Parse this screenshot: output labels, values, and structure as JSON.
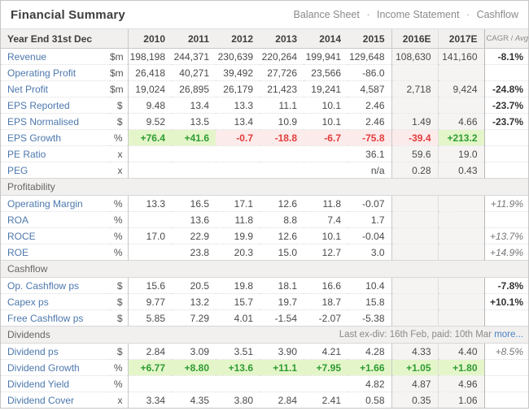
{
  "colors": {
    "link_blue": "#4d78ad",
    "more_link_blue": "#4c82c3",
    "positive_text": "#2e9b33",
    "positive_bg": "#e4f6c9",
    "negative_text": "#e23c3c",
    "negative_bg": "#fcebeb",
    "header_bg": "#f1f0ef",
    "estimate_col_bg": "#f5f4f3"
  },
  "header": {
    "title": "Financial Summary",
    "nav": [
      "Balance Sheet",
      "Income Statement",
      "Cashflow"
    ],
    "nav_sep": "·"
  },
  "table": {
    "corner": "Year End 31st Dec",
    "years": [
      "2010",
      "2011",
      "2012",
      "2013",
      "2014",
      "2015",
      "2016E",
      "2017E"
    ],
    "cagr_header": {
      "main": "CAGR /",
      "italic": "Avg"
    },
    "sections": [
      {
        "name": "",
        "rows": [
          {
            "label": "Revenue",
            "unit": "$m",
            "cells": [
              "198,198",
              "244,371",
              "230,639",
              "220,264",
              "199,941",
              "129,648",
              "108,630",
              "141,160"
            ],
            "cagr": {
              "v": "-8.1%",
              "c": "bold"
            }
          },
          {
            "label": "Operating Profit",
            "unit": "$m",
            "cells": [
              "26,418",
              "40,271",
              "39,492",
              "27,726",
              "23,566",
              "-86.0",
              "",
              ""
            ],
            "cagr": ""
          },
          {
            "label": "Net Profit",
            "unit": "$m",
            "cells": [
              "19,024",
              "26,895",
              "26,179",
              "21,423",
              "19,241",
              "4,587",
              "2,718",
              "9,424"
            ],
            "cagr": {
              "v": "-24.8%",
              "c": "bold"
            }
          },
          {
            "label": "EPS Reported",
            "unit": "$",
            "sep": true,
            "cells": [
              "9.48",
              "13.4",
              "13.3",
              "11.1",
              "10.1",
              "2.46",
              "",
              ""
            ],
            "cagr": {
              "v": "-23.7%",
              "c": "bold"
            }
          },
          {
            "label": "EPS Normalised",
            "unit": "$",
            "cells": [
              "9.52",
              "13.5",
              "13.4",
              "10.9",
              "10.1",
              "2.46",
              "1.49",
              "4.66"
            ],
            "cagr": {
              "v": "-23.7%",
              "c": "bold"
            }
          },
          {
            "label": "EPS Growth",
            "unit": "%",
            "cells": [
              {
                "v": "+76.4",
                "c": "pos"
              },
              {
                "v": "+41.6",
                "c": "pos"
              },
              {
                "v": "-0.7",
                "c": "neg"
              },
              {
                "v": "-18.8",
                "c": "neg"
              },
              {
                "v": "-6.7",
                "c": "neg"
              },
              {
                "v": "-75.8",
                "c": "neg"
              },
              {
                "v": "-39.4",
                "c": "neg"
              },
              {
                "v": "+213.2",
                "c": "pos"
              }
            ],
            "cagr": ""
          },
          {
            "label": "PE Ratio",
            "unit": "x",
            "cells": [
              "",
              "",
              "",
              "",
              "",
              "36.1",
              "59.6",
              "19.0"
            ],
            "cagr": ""
          },
          {
            "label": "PEG",
            "unit": "x",
            "cells": [
              "",
              "",
              "",
              "",
              "",
              "n/a",
              "0.28",
              "0.43"
            ],
            "cagr": ""
          }
        ]
      },
      {
        "name": "Profitability",
        "rows": [
          {
            "label": "Operating Margin",
            "unit": "%",
            "cells": [
              "13.3",
              "16.5",
              "17.1",
              "12.6",
              "11.8",
              "-0.07",
              "",
              ""
            ],
            "cagr": {
              "v": "+11.9%",
              "c": "italic"
            }
          },
          {
            "label": "ROA",
            "unit": "%",
            "cells": [
              "",
              "13.6",
              "11.8",
              "8.8",
              "7.4",
              "1.7",
              "",
              ""
            ],
            "cagr": ""
          },
          {
            "label": "ROCE",
            "unit": "%",
            "cells": [
              "17.0",
              "22.9",
              "19.9",
              "12.6",
              "10.1",
              "-0.04",
              "",
              ""
            ],
            "cagr": {
              "v": "+13.7%",
              "c": "italic"
            }
          },
          {
            "label": "ROE",
            "unit": "%",
            "cells": [
              "",
              "23.8",
              "20.3",
              "15.0",
              "12.7",
              "3.0",
              "",
              ""
            ],
            "cagr": {
              "v": "+14.9%",
              "c": "italic"
            }
          }
        ]
      },
      {
        "name": "Cashflow",
        "rows": [
          {
            "label": "Op. Cashflow ps",
            "unit": "$",
            "cells": [
              "15.6",
              "20.5",
              "19.8",
              "18.1",
              "16.6",
              "10.4",
              "",
              ""
            ],
            "cagr": {
              "v": "-7.8%",
              "c": "bold"
            }
          },
          {
            "label": "Capex ps",
            "unit": "$",
            "cells": [
              "9.77",
              "13.2",
              "15.7",
              "19.7",
              "18.7",
              "15.8",
              "",
              ""
            ],
            "cagr": {
              "v": "+10.1%",
              "c": "bold"
            }
          },
          {
            "label": "Free Cashflow ps",
            "unit": "$",
            "cells": [
              "5.85",
              "7.29",
              "4.01",
              "-1.54",
              "-2.07",
              "-5.38",
              "",
              ""
            ],
            "cagr": ""
          }
        ]
      },
      {
        "name": "Dividends",
        "note": "Last ex-div: 16th Feb, paid: 10th Mar",
        "note_link": "more...",
        "rows": [
          {
            "label": "Dividend ps",
            "unit": "$",
            "cells": [
              "2.84",
              "3.09",
              "3.51",
              "3.90",
              "4.21",
              "4.28",
              "4.33",
              "4.40"
            ],
            "cagr": {
              "v": "+8.5%",
              "c": "italic"
            }
          },
          {
            "label": "Dividend Growth",
            "unit": "%",
            "cells": [
              {
                "v": "+6.77",
                "c": "pos"
              },
              {
                "v": "+8.80",
                "c": "pos"
              },
              {
                "v": "+13.6",
                "c": "pos"
              },
              {
                "v": "+11.1",
                "c": "pos"
              },
              {
                "v": "+7.95",
                "c": "pos"
              },
              {
                "v": "+1.66",
                "c": "pos"
              },
              {
                "v": "+1.05",
                "c": "pos"
              },
              {
                "v": "+1.80",
                "c": "pos"
              }
            ],
            "cagr": ""
          },
          {
            "label": "Dividend Yield",
            "unit": "%",
            "cells": [
              "",
              "",
              "",
              "",
              "",
              "4.82",
              "4.87",
              "4.96"
            ],
            "cagr": ""
          },
          {
            "label": "Dividend Cover",
            "unit": "x",
            "cells": [
              "3.34",
              "4.35",
              "3.80",
              "2.84",
              "2.41",
              "0.58",
              "0.35",
              "1.06"
            ],
            "cagr": ""
          }
        ]
      }
    ]
  }
}
